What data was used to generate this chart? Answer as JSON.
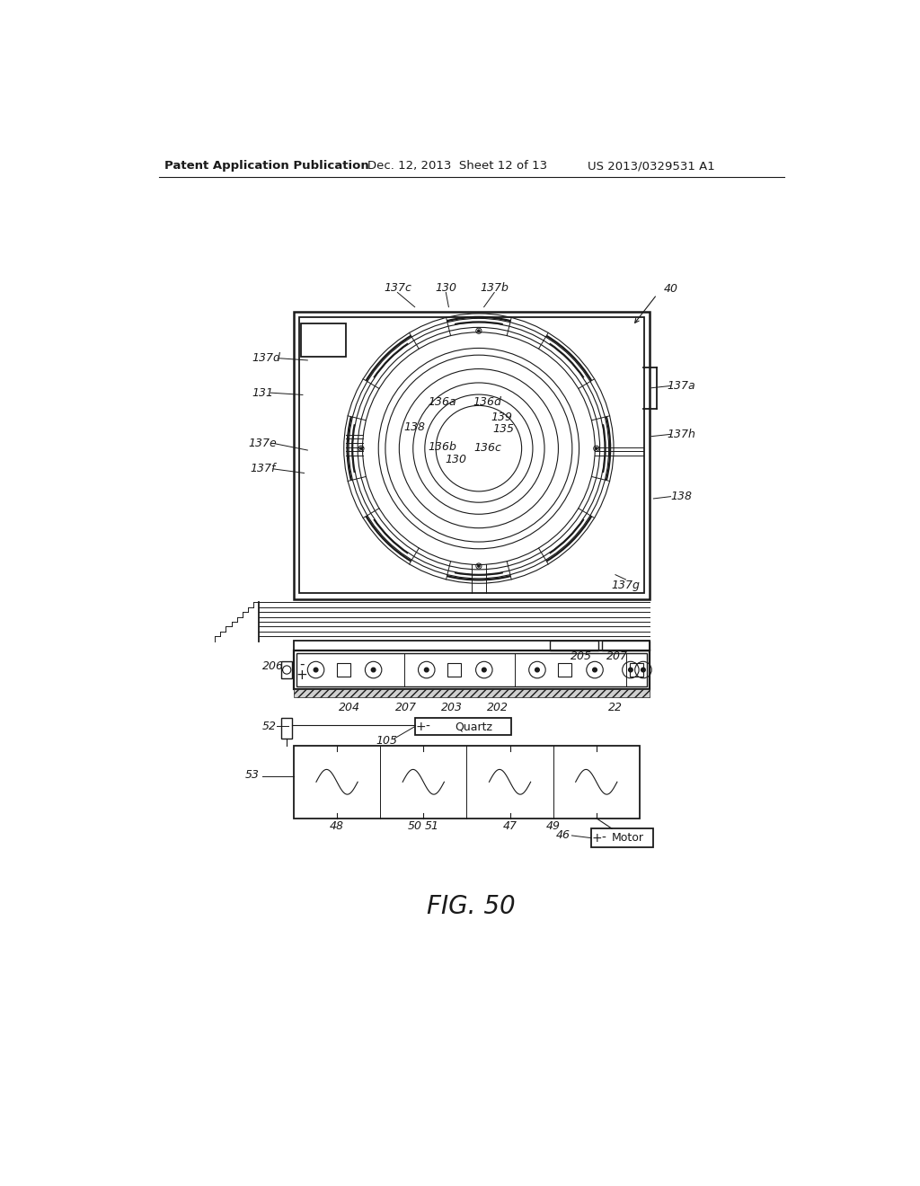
{
  "bg_color": "#ffffff",
  "header_text": "Patent Application Publication",
  "header_date": "Dec. 12, 2013  Sheet 12 of 13",
  "header_patent": "US 2013/0329531 A1",
  "figure_label": "FIG. 50",
  "fig_label_fontsize": 20,
  "header_fontsize": 9.5,
  "label_fontsize": 9,
  "line_color": "#1a1a1a",
  "line_width": 1.3
}
